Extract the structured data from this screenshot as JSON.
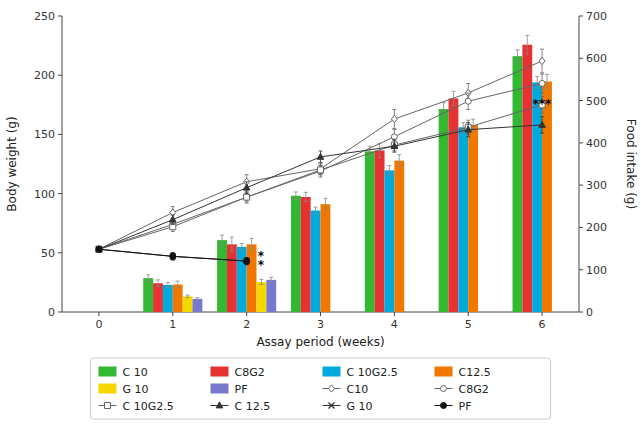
{
  "chart_data": {
    "type": "bar",
    "xlabel": "Assay period (weeks)",
    "ylabel": "Body weight (g)",
    "y2label": "Food intake (g)",
    "x": [
      0,
      1,
      2,
      3,
      4,
      5,
      6
    ],
    "xlim": [
      -0.5,
      6.5
    ],
    "xticks": [
      0,
      1,
      2,
      3,
      4,
      5,
      6
    ],
    "ylim": [
      0,
      250
    ],
    "yticks": [
      0,
      50,
      100,
      150,
      200,
      250
    ],
    "y2lim": [
      0,
      700
    ],
    "y2ticks": [
      0,
      100,
      200,
      300,
      400,
      500,
      600,
      700
    ],
    "grid": false,
    "legend": "bottom",
    "series": [
      {
        "name": "C 10",
        "type": "bar",
        "axis": "y2",
        "color": "#33b833",
        "values": [
          null,
          80,
          170,
          275,
          380,
          480,
          605
        ],
        "errors": [
          null,
          8,
          12,
          9,
          12,
          15,
          15
        ]
      },
      {
        "name": "C8G2",
        "type": "bar",
        "axis": "y2",
        "color": "#e63232",
        "values": [
          null,
          68,
          160,
          272,
          382,
          505,
          632
        ],
        "errors": [
          null,
          8,
          17,
          11,
          17,
          17,
          22
        ]
      },
      {
        "name": "C 10G2.5",
        "type": "bar",
        "axis": "y2",
        "color": "#00aadd",
        "values": [
          null,
          64,
          154,
          240,
          335,
          437,
          543
        ],
        "errors": [
          null,
          6,
          8,
          8,
          11,
          11,
          14
        ]
      },
      {
        "name": "C12.5",
        "type": "bar",
        "axis": "y2",
        "color": "#f07800",
        "values": [
          null,
          65,
          160,
          255,
          358,
          442,
          545
        ],
        "errors": [
          null,
          8,
          14,
          14,
          14,
          14,
          17
        ]
      },
      {
        "name": "G 10",
        "type": "bar",
        "axis": "y2",
        "color": "#f5d800",
        "values": [
          null,
          37,
          71,
          null,
          null,
          null,
          null
        ],
        "errors": [
          null,
          3,
          6,
          null,
          null,
          null,
          null
        ]
      },
      {
        "name": "PF",
        "type": "bar",
        "axis": "y2",
        "color": "#7878cc",
        "values": [
          null,
          31,
          76,
          null,
          null,
          null,
          null
        ],
        "errors": [
          null,
          3,
          6,
          null,
          null,
          null,
          null
        ]
      },
      {
        "name": "C10",
        "type": "line",
        "axis": "y",
        "color": "#666666",
        "marker": "open-diamond",
        "values": [
          53,
          84,
          110,
          121,
          163,
          185,
          212
        ],
        "errors": [
          2,
          5,
          6,
          5,
          8,
          8,
          10
        ]
      },
      {
        "name": "C8G2",
        "type": "line",
        "axis": "y",
        "color": "#666666",
        "marker": "open-circle",
        "values": [
          53,
          74,
          97,
          119,
          148,
          178,
          193
        ],
        "errors": [
          2,
          4,
          5,
          5,
          6,
          7,
          8
        ]
      },
      {
        "name": "C 10G2.5",
        "type": "line",
        "axis": "y",
        "color": "#666666",
        "marker": "open-square",
        "values": [
          53,
          72,
          97,
          120,
          141,
          156,
          175
        ],
        "errors": [
          2,
          4,
          4,
          4,
          5,
          6,
          7
        ]
      },
      {
        "name": "C 12.5",
        "type": "line",
        "axis": "y",
        "color": "#333333",
        "marker": "triangle",
        "values": [
          53,
          78,
          105,
          131,
          140,
          154,
          158
        ],
        "errors": [
          2,
          4,
          5,
          5,
          5,
          6,
          7
        ]
      },
      {
        "name": "G 10",
        "type": "line",
        "axis": "y",
        "color": "#333333",
        "marker": "x",
        "values": [
          53,
          47,
          43,
          null,
          null,
          null,
          null
        ],
        "errors": [
          2,
          3,
          3,
          null,
          null,
          null,
          null
        ]
      },
      {
        "name": "PF",
        "type": "line",
        "axis": "y",
        "color": "#111111",
        "marker": "circle",
        "values": [
          53,
          47,
          43,
          null,
          null,
          null,
          null
        ],
        "errors": [
          2,
          3,
          3,
          null,
          null,
          null,
          null
        ]
      }
    ],
    "annotations": [
      {
        "text": "*",
        "x": 2.15,
        "y": 47
      },
      {
        "text": "*",
        "x": 2.15,
        "y": 40
      },
      {
        "text": "***",
        "x": 5.87,
        "y": 176
      }
    ]
  }
}
